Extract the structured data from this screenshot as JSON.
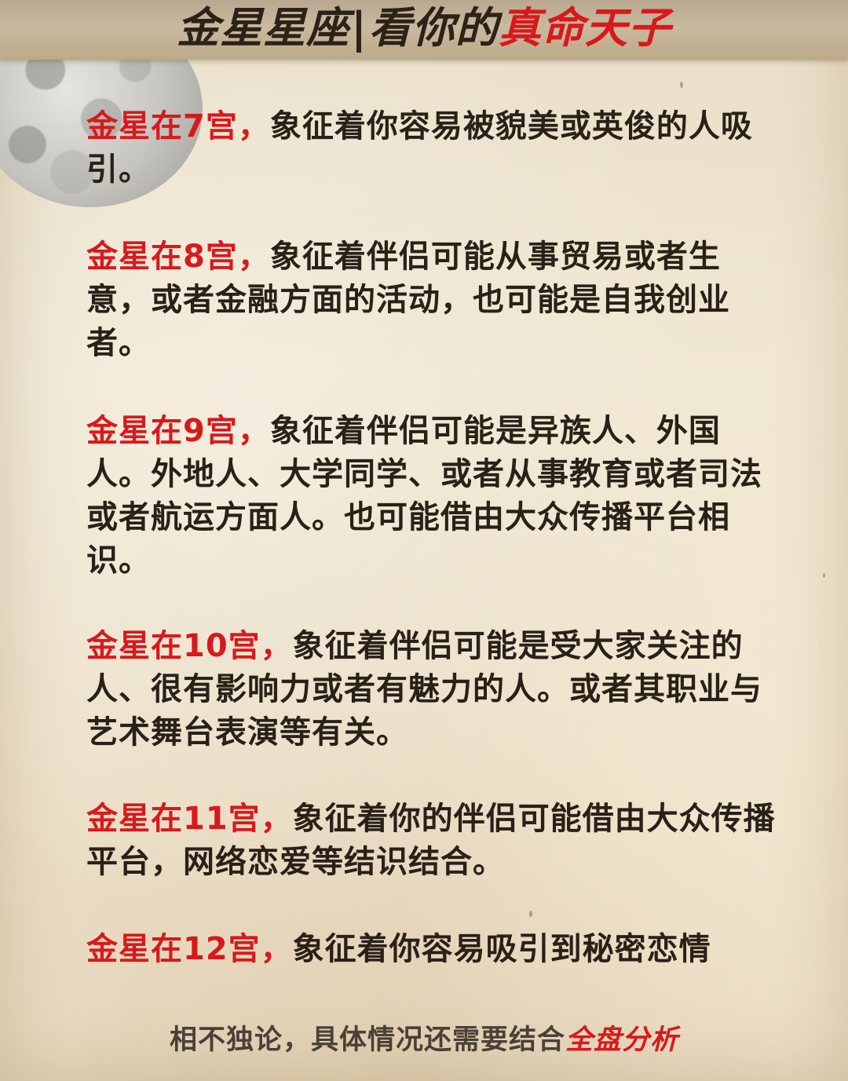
{
  "header": {
    "title_prefix": "金星星座",
    "separator": "|",
    "title_middle": "看你的",
    "title_highlight": "真命天子"
  },
  "items": [
    {
      "highlight": "金星在7宫，",
      "text": "象征着你容易被貌美或英俊的人吸引。"
    },
    {
      "highlight": "金星在8宫，",
      "text": "象征着伴侣可能从事贸易或者生意，或者金融方面的活动，也可能是自我创业者。"
    },
    {
      "highlight": "金星在9宫，",
      "text": "象征着伴侣可能是异族人、外国人。外地人、大学同学、或者从事教育或者司法或者航运方面人。也可能借由大众传播平台相识。"
    },
    {
      "highlight": "金星在10宫，",
      "text": "象征着伴侣可能是受大家关注的人、很有影响力或者有魅力的人。或者其职业与艺术舞台表演等有关。"
    },
    {
      "highlight": "金星在11宫，",
      "text": "象征着你的伴侣可能借由大众传播平台，网络恋爱等结识结合。"
    },
    {
      "highlight": "金星在12宫，",
      "text": "象征着你容易吸引到秘密恋情"
    }
  ],
  "footer": {
    "text": "相不独论，具体情况还需要结合",
    "highlight": "全盘分析"
  },
  "colors": {
    "accent_red": "#d8191c",
    "text_dark": "#2a2018",
    "paper": "#ece0c8"
  }
}
